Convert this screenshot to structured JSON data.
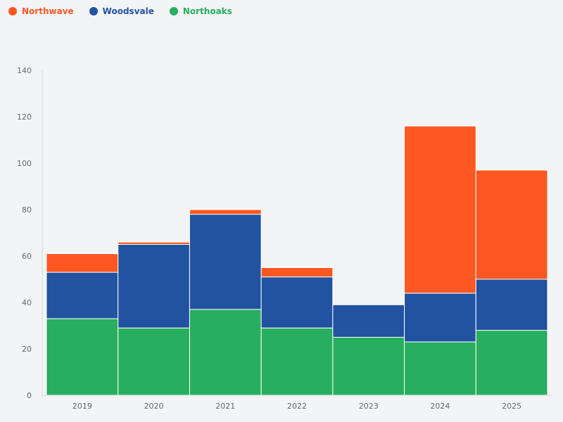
{
  "chart_data": {
    "type": "bar",
    "stacked": true,
    "categories": [
      "2019",
      "2020",
      "2021",
      "2022",
      "2023",
      "2024",
      "2025"
    ],
    "series": [
      {
        "name": "Northoaks",
        "color": "#27ae60",
        "values": [
          33,
          29,
          37,
          29,
          25,
          23,
          28
        ]
      },
      {
        "name": "Woodsvale",
        "color": "#2253a0",
        "values": [
          20,
          36,
          41,
          22,
          14,
          21,
          22
        ]
      },
      {
        "name": "Northwave",
        "color": "#ff5722",
        "values": [
          8,
          1,
          2,
          4,
          0,
          72,
          47
        ]
      }
    ],
    "legend_order": [
      "Northwave",
      "Woodsvale",
      "Northoaks"
    ],
    "legend_position": "top-left",
    "ylim": [
      0,
      140
    ],
    "yticks": [
      0,
      20,
      40,
      60,
      80,
      100,
      120,
      140
    ],
    "grid": false,
    "title": "",
    "xlabel": "",
    "ylabel": ""
  }
}
